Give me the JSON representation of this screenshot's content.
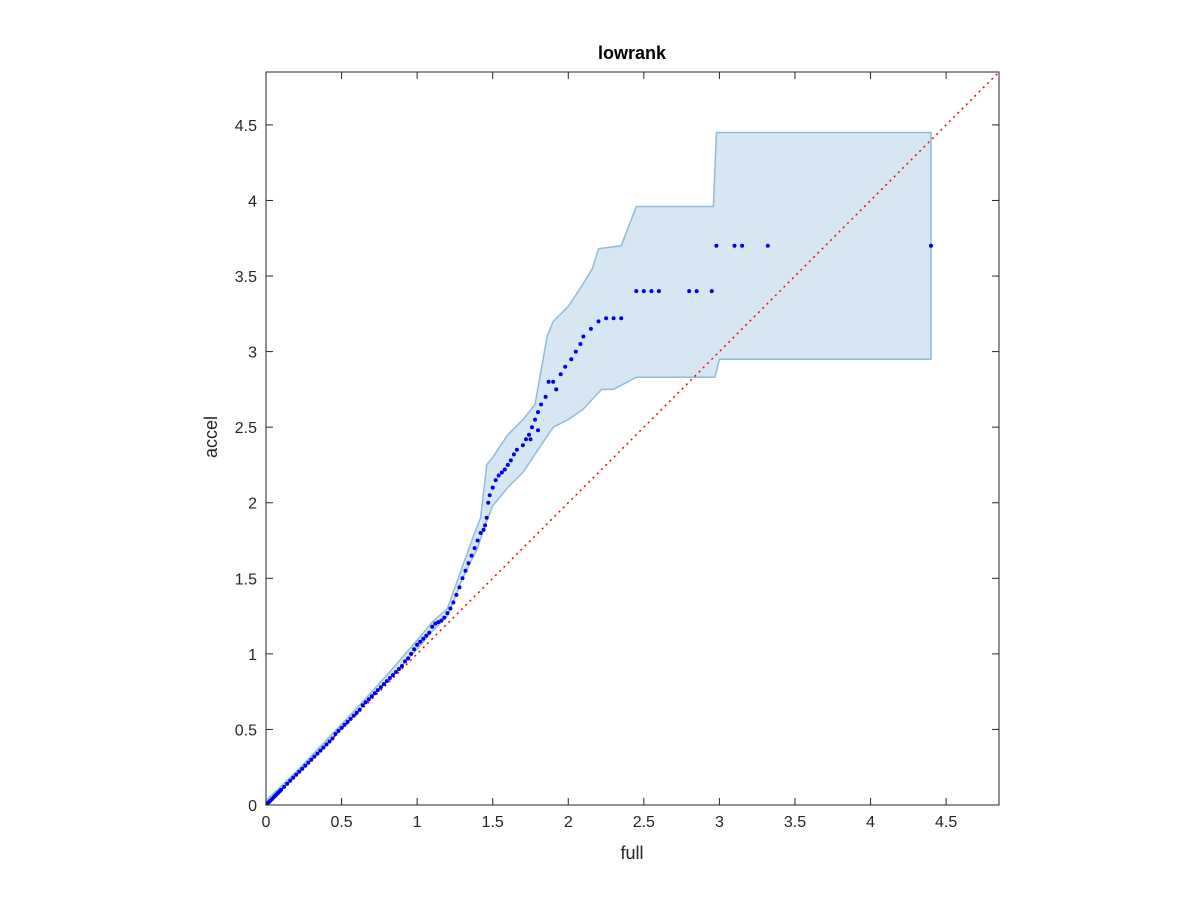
{
  "chart_data": {
    "type": "scatter",
    "title": "lowrank",
    "xlabel": "full",
    "ylabel": "accel",
    "xlim": [
      0,
      4.85
    ],
    "ylim": [
      0,
      4.85
    ],
    "xticks": [
      "0",
      "0.5",
      "1",
      "1.5",
      "2",
      "2.5",
      "3",
      "3.5",
      "4",
      "4.5"
    ],
    "yticks": [
      "0",
      "0.5",
      "1",
      "1.5",
      "2",
      "2.5",
      "3",
      "3.5",
      "4",
      "4.5"
    ],
    "grid": false,
    "legend": "none",
    "colors": {
      "points": "#0000ee",
      "band_fill": "#d6e7f3",
      "band_edge": "#8fbcdb",
      "reference_line": "#ff0000"
    },
    "reference_line": {
      "from": [
        0,
        0
      ],
      "to": [
        4.85,
        4.85
      ],
      "style": "dotted"
    },
    "points": [
      [
        0.01,
        0.01
      ],
      [
        0.02,
        0.02
      ],
      [
        0.03,
        0.03
      ],
      [
        0.04,
        0.04
      ],
      [
        0.05,
        0.05
      ],
      [
        0.06,
        0.06
      ],
      [
        0.07,
        0.07
      ],
      [
        0.08,
        0.08
      ],
      [
        0.09,
        0.09
      ],
      [
        0.1,
        0.1
      ],
      [
        0.12,
        0.12
      ],
      [
        0.14,
        0.14
      ],
      [
        0.16,
        0.16
      ],
      [
        0.18,
        0.18
      ],
      [
        0.2,
        0.2
      ],
      [
        0.22,
        0.22
      ],
      [
        0.24,
        0.24
      ],
      [
        0.26,
        0.26
      ],
      [
        0.28,
        0.28
      ],
      [
        0.3,
        0.3
      ],
      [
        0.32,
        0.32
      ],
      [
        0.34,
        0.34
      ],
      [
        0.36,
        0.36
      ],
      [
        0.38,
        0.38
      ],
      [
        0.4,
        0.4
      ],
      [
        0.42,
        0.42
      ],
      [
        0.44,
        0.44
      ],
      [
        0.46,
        0.47
      ],
      [
        0.48,
        0.49
      ],
      [
        0.5,
        0.51
      ],
      [
        0.52,
        0.53
      ],
      [
        0.54,
        0.55
      ],
      [
        0.56,
        0.57
      ],
      [
        0.58,
        0.59
      ],
      [
        0.6,
        0.61
      ],
      [
        0.62,
        0.63
      ],
      [
        0.64,
        0.66
      ],
      [
        0.66,
        0.68
      ],
      [
        0.68,
        0.7
      ],
      [
        0.7,
        0.72
      ],
      [
        0.72,
        0.74
      ],
      [
        0.74,
        0.76
      ],
      [
        0.76,
        0.78
      ],
      [
        0.78,
        0.8
      ],
      [
        0.8,
        0.82
      ],
      [
        0.82,
        0.84
      ],
      [
        0.84,
        0.86
      ],
      [
        0.86,
        0.88
      ],
      [
        0.88,
        0.9
      ],
      [
        0.9,
        0.92
      ],
      [
        0.92,
        0.95
      ],
      [
        0.94,
        0.97
      ],
      [
        0.96,
        1.0
      ],
      [
        0.98,
        1.03
      ],
      [
        1.0,
        1.06
      ],
      [
        1.02,
        1.08
      ],
      [
        1.04,
        1.1
      ],
      [
        1.06,
        1.12
      ],
      [
        1.08,
        1.14
      ],
      [
        1.1,
        1.18
      ],
      [
        1.12,
        1.2
      ],
      [
        1.14,
        1.21
      ],
      [
        1.16,
        1.22
      ],
      [
        1.18,
        1.24
      ],
      [
        1.2,
        1.27
      ],
      [
        1.22,
        1.3
      ],
      [
        1.24,
        1.34
      ],
      [
        1.26,
        1.39
      ],
      [
        1.28,
        1.44
      ],
      [
        1.3,
        1.5
      ],
      [
        1.32,
        1.55
      ],
      [
        1.34,
        1.6
      ],
      [
        1.36,
        1.65
      ],
      [
        1.38,
        1.7
      ],
      [
        1.4,
        1.75
      ],
      [
        1.42,
        1.8
      ],
      [
        1.44,
        1.82
      ],
      [
        1.45,
        1.85
      ],
      [
        1.46,
        1.9
      ],
      [
        1.47,
        2.0
      ],
      [
        1.48,
        2.05
      ],
      [
        1.5,
        2.1
      ],
      [
        1.52,
        2.15
      ],
      [
        1.54,
        2.18
      ],
      [
        1.56,
        2.2
      ],
      [
        1.58,
        2.22
      ],
      [
        1.6,
        2.25
      ],
      [
        1.62,
        2.28
      ],
      [
        1.64,
        2.32
      ],
      [
        1.66,
        2.35
      ],
      [
        1.7,
        2.38
      ],
      [
        1.72,
        2.42
      ],
      [
        1.74,
        2.45
      ],
      [
        1.76,
        2.5
      ],
      [
        1.78,
        2.55
      ],
      [
        1.8,
        2.6
      ],
      [
        1.82,
        2.65
      ],
      [
        1.85,
        2.7
      ],
      [
        1.87,
        2.8
      ],
      [
        1.9,
        2.8
      ],
      [
        1.75,
        2.42
      ],
      [
        1.8,
        2.48
      ],
      [
        1.92,
        2.75
      ],
      [
        1.95,
        2.85
      ],
      [
        1.98,
        2.9
      ],
      [
        2.02,
        2.95
      ],
      [
        2.05,
        3.0
      ],
      [
        2.08,
        3.05
      ],
      [
        2.1,
        3.1
      ],
      [
        2.15,
        3.15
      ],
      [
        2.2,
        3.2
      ],
      [
        2.25,
        3.22
      ],
      [
        2.3,
        3.22
      ],
      [
        2.35,
        3.22
      ],
      [
        2.45,
        3.4
      ],
      [
        2.5,
        3.4
      ],
      [
        2.55,
        3.4
      ],
      [
        2.6,
        3.4
      ],
      [
        2.8,
        3.4
      ],
      [
        2.85,
        3.4
      ],
      [
        2.95,
        3.4
      ],
      [
        2.98,
        3.7
      ],
      [
        3.1,
        3.7
      ],
      [
        3.15,
        3.7
      ],
      [
        3.32,
        3.7
      ],
      [
        4.4,
        3.7
      ]
    ],
    "band_upper": [
      [
        0,
        0.03
      ],
      [
        0.2,
        0.22
      ],
      [
        0.4,
        0.43
      ],
      [
        0.6,
        0.64
      ],
      [
        0.8,
        0.86
      ],
      [
        1.0,
        1.09
      ],
      [
        1.1,
        1.21
      ],
      [
        1.2,
        1.3
      ],
      [
        1.3,
        1.58
      ],
      [
        1.38,
        1.8
      ],
      [
        1.42,
        1.9
      ],
      [
        1.46,
        2.25
      ],
      [
        1.5,
        2.3
      ],
      [
        1.6,
        2.45
      ],
      [
        1.7,
        2.55
      ],
      [
        1.78,
        2.65
      ],
      [
        1.86,
        3.1
      ],
      [
        1.9,
        3.2
      ],
      [
        2.0,
        3.3
      ],
      [
        2.08,
        3.42
      ],
      [
        2.16,
        3.55
      ],
      [
        2.2,
        3.68
      ],
      [
        2.35,
        3.7
      ],
      [
        2.45,
        3.96
      ],
      [
        2.96,
        3.96
      ],
      [
        2.98,
        4.45
      ],
      [
        4.4,
        4.45
      ]
    ],
    "band_lower": [
      [
        4.4,
        2.95
      ],
      [
        3.0,
        2.95
      ],
      [
        2.97,
        2.83
      ],
      [
        2.45,
        2.83
      ],
      [
        2.3,
        2.75
      ],
      [
        2.22,
        2.75
      ],
      [
        2.1,
        2.62
      ],
      [
        2.0,
        2.55
      ],
      [
        1.9,
        2.5
      ],
      [
        1.8,
        2.35
      ],
      [
        1.7,
        2.2
      ],
      [
        1.6,
        2.1
      ],
      [
        1.5,
        1.98
      ],
      [
        1.45,
        1.85
      ],
      [
        1.4,
        1.7
      ],
      [
        1.35,
        1.6
      ],
      [
        1.3,
        1.5
      ],
      [
        1.2,
        1.25
      ],
      [
        1.1,
        1.15
      ],
      [
        1.0,
        1.03
      ],
      [
        0.8,
        0.82
      ],
      [
        0.6,
        0.61
      ],
      [
        0.4,
        0.4
      ],
      [
        0.2,
        0.2
      ],
      [
        0,
        0
      ]
    ]
  }
}
